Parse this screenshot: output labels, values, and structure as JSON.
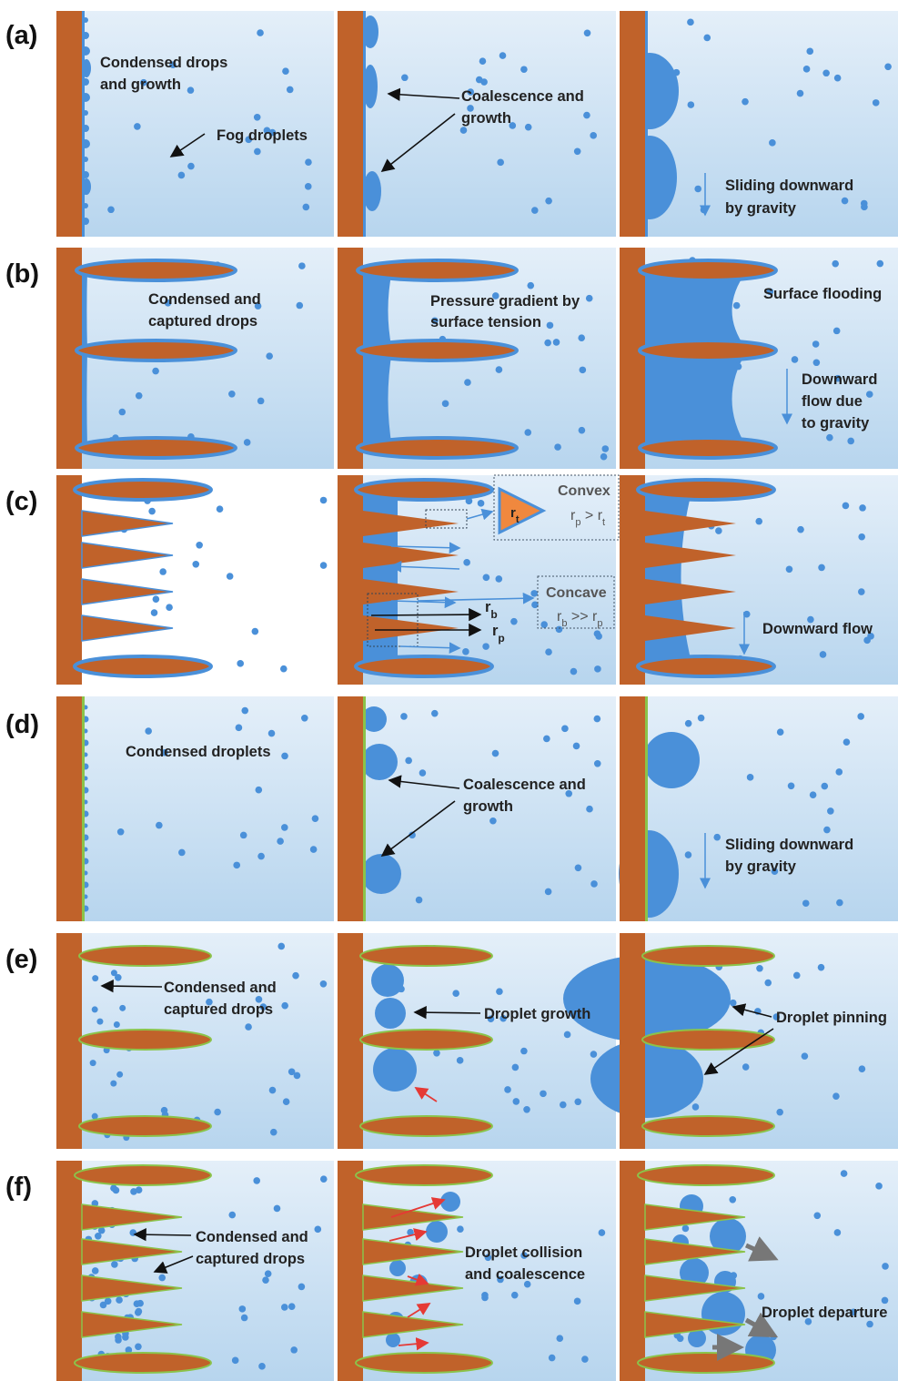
{
  "rows": [
    {
      "label": "(a)",
      "panels": [
        {
          "texts": [
            "Condensed drops",
            "and growth",
            "Fog droplets"
          ]
        },
        {
          "texts": [
            "Coalescence and",
            "growth"
          ]
        },
        {
          "texts": [
            "Sliding downward",
            "by gravity"
          ]
        }
      ]
    },
    {
      "label": "(b)",
      "panels": [
        {
          "texts": [
            "Condensed and",
            "captured drops"
          ]
        },
        {
          "texts": [
            "Pressure gradient by",
            "surface tension"
          ]
        },
        {
          "texts": [
            "Surface flooding",
            "Downward",
            "flow due",
            "to gravity"
          ]
        }
      ]
    },
    {
      "label": "(c)",
      "convex": {
        "title": "Convex",
        "inset": [
          "r",
          "t"
        ],
        "relation": [
          "r",
          "p",
          " > r",
          "t"
        ]
      },
      "concave": {
        "title": "Concave",
        "relation": [
          "r",
          "b",
          " >> r",
          "p"
        ]
      },
      "radii": [
        [
          "r",
          "b"
        ],
        [
          "r",
          "p"
        ]
      ],
      "texts": [
        "Downward flow"
      ]
    },
    {
      "label": "(d)",
      "panels": [
        {
          "texts": [
            "Condensed droplets"
          ]
        },
        {
          "texts": [
            "Coalescence and",
            "growth"
          ]
        },
        {
          "texts": [
            "Sliding downward",
            "by gravity"
          ]
        }
      ]
    },
    {
      "label": "(e)",
      "panels": [
        {
          "texts": [
            "Condensed and",
            "captured drops"
          ]
        },
        {
          "texts": [
            "Droplet growth"
          ]
        },
        {
          "texts": [
            "Droplet pinning"
          ]
        }
      ]
    },
    {
      "label": "(f)",
      "panels": [
        {
          "texts": [
            "Condensed and",
            "captured drops"
          ]
        },
        {
          "texts": [
            "Droplet collision",
            "and coalescence"
          ]
        },
        {
          "texts": [
            "Droplet departure"
          ]
        }
      ]
    }
  ]
}
